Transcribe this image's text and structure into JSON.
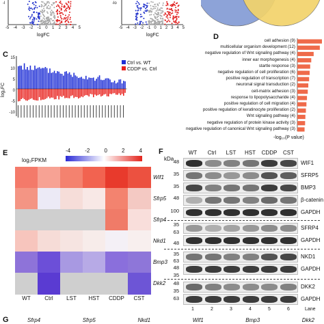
{
  "panelA": {
    "xlabel": "logFC",
    "ylabel_fragment": "-l",
    "ticks": [
      "-5",
      "-4",
      "-3",
      "-2",
      "-1",
      "0",
      "1",
      "2",
      "3",
      "4",
      "5"
    ]
  },
  "panelB": {
    "xlabel": "logFC",
    "ylabel_fragment": "-lo",
    "ticks": [
      "-5",
      "-4",
      "-3",
      "-2",
      "-1",
      "0",
      "1",
      "2",
      "3",
      "4",
      "5"
    ]
  },
  "panelC": {
    "label": "C",
    "ylabel": "log₂FC",
    "yticks": [
      "15",
      "10",
      "5",
      "0",
      "-5",
      "-10"
    ],
    "legend": [
      {
        "name": "Ctrl vs. WT",
        "color": "#1f2fd6"
      },
      {
        "name": "CDDP vs. Ctrl",
        "color": "#e8231f"
      }
    ]
  },
  "panelD": {
    "label": "D",
    "xlabel": "-log₁₀(P value)",
    "bar_color": "#ef6a4a",
    "terms": [
      "cell adhesion (9)",
      "multicellular organism development (12)",
      "negative regulation of Wnt signaling pathway (4)",
      "inner ear morphogenesis (4)",
      "startle response (3)",
      "negative regulation of cell proliferation (6)",
      "positive regulation of transcription (7)",
      "neuronal signal transduction (2)",
      "cell-matrix adhesion (3)",
      "response to lipopolysaccharide (4)",
      "positive regulation of cell migration (4)",
      "positive regulation of keratinocyte proliferation (2)",
      "Wnt signaling pathway (4)",
      "negative regulation of protein kinase activity (3)",
      "negative regulation of canonical Wnt signaling pathway (3)"
    ],
    "values": [
      9.2,
      8.4,
      6.1,
      5.2,
      4.8,
      4.6,
      4.4,
      4.1,
      3.9,
      3.6,
      3.4,
      3.2,
      3.0,
      2.9,
      2.7
    ]
  },
  "panelE": {
    "label": "E",
    "scale_title": "log₂FPKM",
    "scale_ticks": [
      "-4",
      "-2",
      "0",
      "2",
      "4"
    ],
    "columns": [
      "WT",
      "Ctrl",
      "LST",
      "HST",
      "CDDP",
      "CST"
    ],
    "rows": [
      "Wif1",
      "Sfrp5",
      "Sfrp4",
      "Nkd1",
      "Bmp3",
      "Dkk2"
    ],
    "colors": [
      [
        "#f47a6a",
        "#f7a294",
        "#f4826f",
        "#f26350",
        "#e83a2c",
        "#ec5140"
      ],
      [
        "#f49584",
        "#eceaf6",
        "#f6ddd9",
        "#f8e8e6",
        "#f3836f",
        "#f4c9c3"
      ],
      [
        "#cfcfcf",
        "#cfcfcf",
        "#cfcfcf",
        "#cfcfcf",
        "#f07b68",
        "#f9dedb"
      ],
      [
        "#f7c5bd",
        "#f6dcd7",
        "#f6e4e1",
        "#f7ecea",
        "#f4f0f6",
        "#f8efee"
      ],
      [
        "#8e73d9",
        "#6c4fd8",
        "#a899e2",
        "#b7aae6",
        "#8a6fdc",
        "#8e76d9"
      ],
      [
        "#cfcfcf",
        "#5a3bd2",
        "#cfcfcf",
        "#cfcfcf",
        "#cfcfcf",
        "#6d55d6"
      ]
    ]
  },
  "panelF": {
    "label": "F",
    "unit": "kDa",
    "lanes": [
      "WT",
      "Ctrl",
      "LST",
      "HST",
      "CDDP",
      "CST"
    ],
    "lane_numbers": [
      "1",
      "2",
      "3",
      "4",
      "5",
      "6"
    ],
    "lane_label": "Lane",
    "markers": [
      "48",
      "35",
      "35",
      "48",
      "100",
      "35",
      "63",
      "48",
      "35",
      "63",
      "48",
      "35",
      "48",
      "35",
      "63",
      "48",
      "35"
    ],
    "blots": [
      "WIF1",
      "SFRP5",
      "BMP3",
      "β-catenin",
      "GAPDH",
      "SFRP4",
      "GAPDH",
      "NKD1",
      "GAPDH",
      "DKK2",
      "GAPDH"
    ]
  },
  "panelG": {
    "label": "G",
    "genes": [
      "Sfrp4",
      "Sfrp5",
      "Nkd1",
      "Wif1",
      "Bmp3",
      "Dkk2"
    ]
  }
}
